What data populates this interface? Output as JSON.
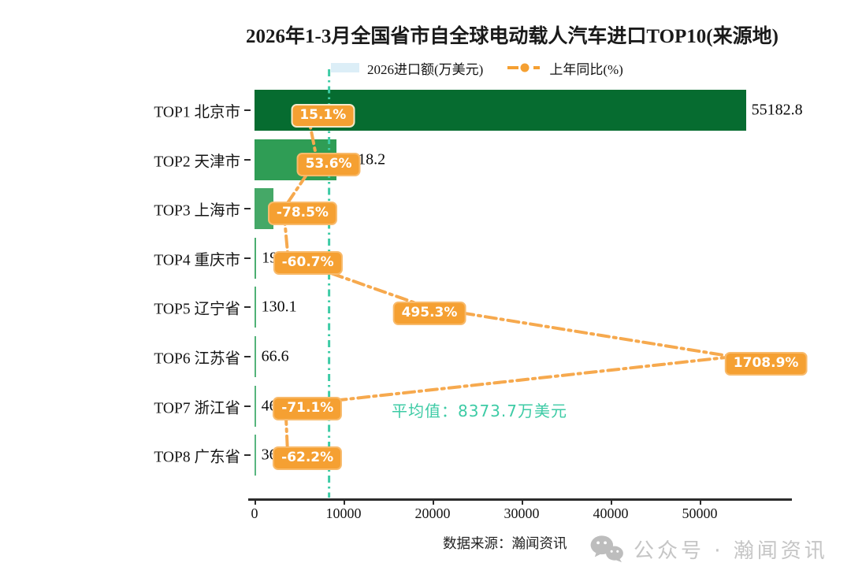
{
  "title": "2026年1-3月全国省市自全球电动载人汽车进口TOP10(来源地)",
  "legend": {
    "bar_label": "2026进口额(万美元)",
    "line_label": "上年同比(%)"
  },
  "chart_data": {
    "type": "bar",
    "orientation": "horizontal",
    "title": "2026年1-3月全国省市自全球电动载人汽车进口TOP10(来源地)",
    "categories": [
      "TOP1 北京市",
      "TOP2 天津市",
      "TOP3 上海市",
      "TOP4 重庆市",
      "TOP5 辽宁省",
      "TOP6 江苏省",
      "TOP7 浙江省",
      "TOP8 广东省"
    ],
    "series": [
      {
        "name": "2026进口额(万美元)",
        "type": "bar",
        "values": [
          55182.8,
          9218.2,
          2110.9,
          199.6,
          130.1,
          66.6,
          46.0,
          36.6
        ],
        "labels": [
          "55182.8",
          "9218.2",
          "2110.9",
          "199.6",
          "130.1",
          "66.6",
          "46.0",
          "36.6"
        ]
      },
      {
        "name": "上年同比(%)",
        "type": "line",
        "values": [
          15.1,
          53.6,
          -78.5,
          -60.7,
          495.3,
          1708.9,
          -71.1,
          -62.2
        ],
        "labels": [
          "15.1%",
          "53.6%",
          "-78.5%",
          "-60.7%",
          "495.3%",
          "1708.9%",
          "-71.1%",
          "-62.2%"
        ]
      }
    ],
    "average": {
      "label": "平均值：8373.7万美元",
      "value": 8373.7,
      "unit": "万美元"
    },
    "x_axis": {
      "ticks": [
        0,
        10000,
        20000,
        30000,
        40000,
        50000
      ],
      "tick_labels": [
        "0",
        "10000",
        "20000",
        "30000",
        "40000",
        "50000"
      ],
      "range": [
        0,
        56000
      ],
      "grid": false
    },
    "legend_position": "top",
    "bar_colors": [
      "#066c30",
      "#2f9d55",
      "#45a867",
      "#4bad70",
      "#50b176",
      "#54b37a",
      "#57b57d",
      "#59b680"
    ],
    "line_color": "#f6a94e",
    "marker_color": "#f5a032",
    "label_box_color": "#f5a032",
    "average_line_color": "#3dcba5",
    "legend_swatch_color": "#dceef7"
  },
  "footer": {
    "source": "数据来源：瀚闻资讯",
    "wechat_label": "公众号 · 瀚闻资讯"
  }
}
